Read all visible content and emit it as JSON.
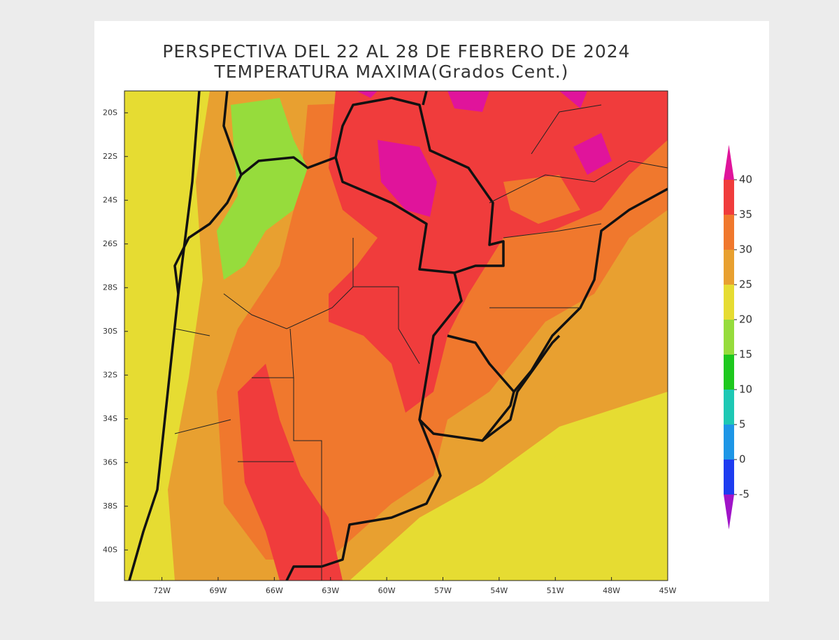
{
  "map": {
    "title_lines": [
      "PERSPECTIVA DEL 22 AL 28 DE FEBRERO DE 2024",
      "TEMPERATURA MAXIMA(Grados Cent.)"
    ],
    "xlim": [
      -74,
      -45
    ],
    "ylim": [
      -41.4,
      -19
    ],
    "lat_ticks": [
      {
        "value": -20,
        "label": "20S"
      },
      {
        "value": -22,
        "label": "22S"
      },
      {
        "value": -24,
        "label": "24S"
      },
      {
        "value": -26,
        "label": "26S"
      },
      {
        "value": -28,
        "label": "28S"
      },
      {
        "value": -30,
        "label": "30S"
      },
      {
        "value": -32,
        "label": "32S"
      },
      {
        "value": -34,
        "label": "34S"
      },
      {
        "value": -36,
        "label": "36S"
      },
      {
        "value": -38,
        "label": "38S"
      },
      {
        "value": -40,
        "label": "40S"
      }
    ],
    "lon_ticks": [
      {
        "value": -72,
        "label": "72W"
      },
      {
        "value": -69,
        "label": "69W"
      },
      {
        "value": -66,
        "label": "66W"
      },
      {
        "value": -63,
        "label": "63W"
      },
      {
        "value": -60,
        "label": "60W"
      },
      {
        "value": -57,
        "label": "57W"
      },
      {
        "value": -54,
        "label": "54W"
      },
      {
        "value": -51,
        "label": "51W"
      },
      {
        "value": -48,
        "label": "48W"
      },
      {
        "value": -45,
        "label": "45W"
      }
    ],
    "colorbar": {
      "levels": [
        -5,
        0,
        5,
        10,
        15,
        20,
        25,
        30,
        35,
        40
      ],
      "colors": [
        "#a014c8",
        "#1e3cf0",
        "#1e96e6",
        "#1ec8b4",
        "#1ec81e",
        "#96dc3c",
        "#e6dc32",
        "#e8a030",
        "#f0782d",
        "#f03c3c",
        "#e0149b"
      ]
    }
  }
}
